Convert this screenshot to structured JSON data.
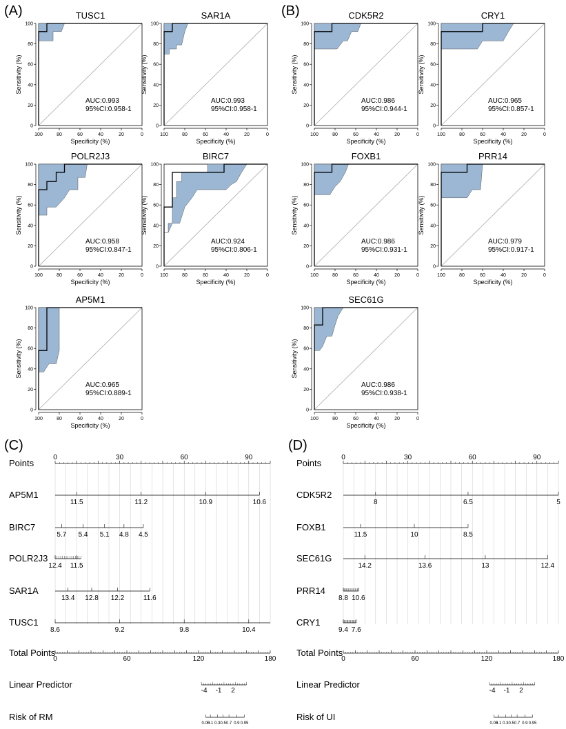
{
  "panels": {
    "A": "(A)",
    "B": "(B)",
    "C": "(C)",
    "D": "(D)"
  },
  "roc_common": {
    "xlabel": "Specificity (%)",
    "ylabel": "Sensitivity (%)",
    "x_ticks": [
      "100",
      "80",
      "60",
      "40",
      "20",
      "0"
    ],
    "y_ticks": [
      "0",
      "20",
      "40",
      "60",
      "80",
      "100"
    ],
    "fill_color": "#9bb7d4",
    "diag_color": "#aaaaaa"
  },
  "chart_data": [
    {
      "type": "line",
      "id": "TUSC1",
      "title": "TUSC1",
      "auc": "AUC:0.993",
      "ci": "95%CI:0.958-1",
      "curve": [
        [
          100,
          0
        ],
        [
          100,
          92
        ],
        [
          92,
          92
        ],
        [
          92,
          100
        ],
        [
          0,
          100
        ]
      ],
      "band_upper": [
        [
          100,
          100
        ],
        [
          0,
          100
        ]
      ],
      "band_lower": [
        [
          100,
          83
        ],
        [
          86,
          83
        ],
        [
          86,
          92
        ],
        [
          78,
          92
        ],
        [
          75,
          100
        ],
        [
          0,
          100
        ]
      ]
    },
    {
      "type": "line",
      "id": "SAR1A",
      "title": "SAR1A",
      "auc": "AUC:0.993",
      "ci": "95%CI:0.958-1",
      "curve": [
        [
          100,
          0
        ],
        [
          100,
          92
        ],
        [
          92,
          92
        ],
        [
          92,
          100
        ],
        [
          0,
          100
        ]
      ],
      "band_upper": [
        [
          100,
          100
        ],
        [
          0,
          100
        ]
      ],
      "band_lower": [
        [
          100,
          70
        ],
        [
          95,
          70
        ],
        [
          95,
          75
        ],
        [
          88,
          75
        ],
        [
          88,
          79
        ],
        [
          83,
          79
        ],
        [
          80,
          92
        ],
        [
          77,
          100
        ],
        [
          0,
          100
        ]
      ]
    },
    {
      "type": "line",
      "id": "CDK5R2",
      "title": "CDK5R2",
      "auc": "AUC:0.986",
      "ci": "95%CI:0.944-1",
      "curve": [
        [
          100,
          0
        ],
        [
          100,
          92
        ],
        [
          83,
          92
        ],
        [
          83,
          100
        ],
        [
          0,
          100
        ]
      ],
      "band_upper": [
        [
          100,
          100
        ],
        [
          0,
          100
        ]
      ],
      "band_lower": [
        [
          100,
          75
        ],
        [
          78,
          75
        ],
        [
          72,
          83
        ],
        [
          68,
          83
        ],
        [
          64,
          92
        ],
        [
          58,
          92
        ],
        [
          55,
          100
        ],
        [
          0,
          100
        ]
      ]
    },
    {
      "type": "line",
      "id": "CRY1",
      "title": "CRY1",
      "auc": "AUC:0.965",
      "ci": "95%CI:0.857-1",
      "curve": [
        [
          100,
          0
        ],
        [
          100,
          92
        ],
        [
          60,
          92
        ],
        [
          60,
          100
        ],
        [
          0,
          100
        ]
      ],
      "band_upper": [
        [
          100,
          100
        ],
        [
          0,
          100
        ]
      ],
      "band_lower": [
        [
          100,
          75
        ],
        [
          65,
          75
        ],
        [
          60,
          83
        ],
        [
          40,
          83
        ],
        [
          35,
          92
        ],
        [
          30,
          100
        ],
        [
          0,
          100
        ]
      ]
    },
    {
      "type": "line",
      "id": "POLR2J3",
      "title": "POLR2J3",
      "auc": "AUC:0.958",
      "ci": "95%CI:0.847-1",
      "curve": [
        [
          100,
          0
        ],
        [
          100,
          75
        ],
        [
          92,
          75
        ],
        [
          92,
          83
        ],
        [
          83,
          83
        ],
        [
          83,
          92
        ],
        [
          75,
          92
        ],
        [
          75,
          100
        ],
        [
          0,
          100
        ]
      ],
      "band_upper": [
        [
          100,
          100
        ],
        [
          0,
          100
        ]
      ],
      "band_lower": [
        [
          100,
          50
        ],
        [
          92,
          50
        ],
        [
          92,
          58
        ],
        [
          83,
          58
        ],
        [
          75,
          67
        ],
        [
          70,
          75
        ],
        [
          62,
          75
        ],
        [
          62,
          87
        ],
        [
          55,
          87
        ],
        [
          53,
          100
        ],
        [
          0,
          100
        ]
      ]
    },
    {
      "type": "line",
      "id": "BIRC7",
      "title": "BIRC7",
      "auc": "AUC:0.924",
      "ci": "95%CI:0.806-1",
      "curve": [
        [
          100,
          0
        ],
        [
          100,
          58
        ],
        [
          92,
          58
        ],
        [
          92,
          92
        ],
        [
          42,
          92
        ],
        [
          42,
          100
        ],
        [
          0,
          100
        ]
      ],
      "band_upper": [
        [
          100,
          33
        ],
        [
          96,
          33
        ],
        [
          96,
          42
        ],
        [
          92,
          42
        ],
        [
          92,
          67
        ],
        [
          88,
          67
        ],
        [
          88,
          83
        ],
        [
          83,
          83
        ],
        [
          83,
          92
        ],
        [
          58,
          92
        ],
        [
          58,
          100
        ],
        [
          0,
          100
        ]
      ],
      "band_lower": [
        [
          100,
          33
        ],
        [
          96,
          33
        ],
        [
          92,
          42
        ],
        [
          85,
          42
        ],
        [
          80,
          58
        ],
        [
          73,
          67
        ],
        [
          68,
          75
        ],
        [
          40,
          75
        ],
        [
          35,
          80
        ],
        [
          30,
          83
        ],
        [
          25,
          92
        ],
        [
          20,
          100
        ],
        [
          0,
          100
        ]
      ]
    },
    {
      "type": "line",
      "id": "FOXB1",
      "title": "FOXB1",
      "auc": "AUC:0.986",
      "ci": "95%CI:0.931-1",
      "curve": [
        [
          100,
          0
        ],
        [
          100,
          92
        ],
        [
          83,
          92
        ],
        [
          83,
          100
        ],
        [
          0,
          100
        ]
      ],
      "band_upper": [
        [
          100,
          100
        ],
        [
          0,
          100
        ]
      ],
      "band_lower": [
        [
          100,
          70
        ],
        [
          85,
          70
        ],
        [
          80,
          78
        ],
        [
          75,
          83
        ],
        [
          70,
          92
        ],
        [
          67,
          100
        ],
        [
          0,
          100
        ]
      ]
    },
    {
      "type": "line",
      "id": "PRR14",
      "title": "PRR14",
      "auc": "AUC:0.979",
      "ci": "95%CI:0.917-1",
      "curve": [
        [
          100,
          0
        ],
        [
          100,
          92
        ],
        [
          75,
          92
        ],
        [
          75,
          100
        ],
        [
          0,
          100
        ]
      ],
      "band_upper": [
        [
          100,
          100
        ],
        [
          0,
          100
        ]
      ],
      "band_lower": [
        [
          100,
          67
        ],
        [
          75,
          67
        ],
        [
          70,
          75
        ],
        [
          62,
          75
        ],
        [
          60,
          100
        ],
        [
          0,
          100
        ]
      ]
    },
    {
      "type": "line",
      "id": "AP5M1",
      "title": "AP5M1",
      "auc": "AUC:0.965",
      "ci": "95%CI:0.889-1",
      "curve": [
        [
          100,
          0
        ],
        [
          100,
          58
        ],
        [
          92,
          58
        ],
        [
          92,
          100
        ],
        [
          0,
          100
        ]
      ],
      "band_upper": [
        [
          100,
          100
        ],
        [
          0,
          100
        ]
      ],
      "band_lower": [
        [
          100,
          37
        ],
        [
          95,
          37
        ],
        [
          90,
          45
        ],
        [
          83,
          45
        ],
        [
          80,
          58
        ],
        [
          80,
          100
        ],
        [
          0,
          100
        ]
      ]
    },
    {
      "type": "line",
      "id": "SEC61G",
      "title": "SEC61G",
      "auc": "AUC:0.986",
      "ci": "95%CI:0.938-1",
      "curve": [
        [
          100,
          0
        ],
        [
          100,
          83
        ],
        [
          92,
          83
        ],
        [
          92,
          100
        ],
        [
          0,
          100
        ]
      ],
      "band_upper": [
        [
          100,
          100
        ],
        [
          0,
          100
        ]
      ],
      "band_lower": [
        [
          100,
          58
        ],
        [
          95,
          58
        ],
        [
          92,
          62
        ],
        [
          88,
          72
        ],
        [
          83,
          72
        ],
        [
          80,
          83
        ],
        [
          77,
          92
        ],
        [
          72,
          100
        ],
        [
          0,
          100
        ]
      ]
    },
    {
      "type": "nomogram",
      "id": "C",
      "rows": [
        {
          "label": "Points",
          "min": 0,
          "max": 100,
          "major_labels": [
            [
              "0",
              0
            ],
            [
              "30",
              30
            ],
            [
              "60",
              60
            ],
            [
              "90",
              90
            ]
          ],
          "minor_step": 10,
          "label_side": "top",
          "grid": true
        },
        {
          "label": "AP5M1",
          "min": 0,
          "max": 95,
          "labels": [
            [
              "11.5",
              10
            ],
            [
              "11.2",
              40
            ],
            [
              "10.9",
              70
            ],
            [
              "10.6",
              95
            ]
          ]
        },
        {
          "label": "BIRC7",
          "min": 0,
          "max": 41,
          "labels": [
            [
              "5.7",
              3
            ],
            [
              "5.4",
              13
            ],
            [
              "5.1",
              23
            ],
            [
              "4.8",
              32
            ],
            [
              "4.5",
              41
            ]
          ]
        },
        {
          "label": "POLR2J3",
          "min": 0,
          "max": 12,
          "labels": [
            [
              "12.4",
              0
            ],
            [
              "11.5",
              10
            ]
          ],
          "fine": true
        },
        {
          "label": "SAR1A",
          "min": 0,
          "max": 44,
          "labels": [
            [
              "13.4",
              6
            ],
            [
              "12.8",
              17
            ],
            [
              "12.2",
              29
            ],
            [
              "11.6",
              44
            ]
          ]
        },
        {
          "label": "TUSC1",
          "min": 0,
          "max": 100,
          "labels": [
            [
              "8.6",
              0
            ],
            [
              "9.2",
              30
            ],
            [
              "9.8",
              60
            ],
            [
              "10.4",
              90
            ]
          ]
        },
        {
          "label": "Total Points",
          "min": 0,
          "max": 180,
          "labels": [
            [
              "0",
              0
            ],
            [
              "60",
              60
            ],
            [
              "120",
              120
            ],
            [
              "180",
              180
            ]
          ],
          "label_side": "top",
          "fine": true
        }
      ],
      "linear_predictor": {
        "label": "Linear Predictor",
        "labels": [
          "-4",
          "-1",
          "2"
        ]
      },
      "risk": {
        "label": "Risk of RM",
        "labels": [
          "0.05",
          "0.1",
          "0.3",
          "0.5",
          "0.7",
          "0.9",
          "0.95"
        ]
      }
    },
    {
      "type": "nomogram",
      "id": "D",
      "rows": [
        {
          "label": "Points",
          "min": 0,
          "max": 100,
          "major_labels": [
            [
              "0",
              0
            ],
            [
              "30",
              30
            ],
            [
              "60",
              60
            ],
            [
              "90",
              90
            ]
          ],
          "minor_step": 10,
          "label_side": "top",
          "grid": true
        },
        {
          "label": "CDK5R2",
          "min": 0,
          "max": 100,
          "labels": [
            [
              "8",
              15
            ],
            [
              "6.5",
              58
            ],
            [
              "5",
              100
            ]
          ]
        },
        {
          "label": "FOXB1",
          "min": 0,
          "max": 58,
          "labels": [
            [
              "11.5",
              8
            ],
            [
              "10",
              33
            ],
            [
              "8.5",
              58
            ]
          ]
        },
        {
          "label": "SEC61G",
          "min": 0,
          "max": 95,
          "labels": [
            [
              "14.2",
              10
            ],
            [
              "13.6",
              38
            ],
            [
              "13",
              66
            ],
            [
              "12.4",
              95
            ]
          ]
        },
        {
          "label": "PRR14",
          "min": 0,
          "max": 7,
          "labels": [
            [
              "8.8",
              0
            ],
            [
              "10.6",
              7
            ]
          ],
          "fine": true
        },
        {
          "label": "CRY1",
          "min": 0,
          "max": 6,
          "labels": [
            [
              "9.4",
              0
            ],
            [
              "7.6",
              6
            ]
          ],
          "fine": true
        },
        {
          "label": "Total Points",
          "min": 0,
          "max": 180,
          "labels": [
            [
              "0",
              0
            ],
            [
              "60",
              60
            ],
            [
              "120",
              120
            ],
            [
              "180",
              180
            ]
          ],
          "label_side": "top",
          "fine": true
        }
      ],
      "linear_predictor": {
        "label": "Linear Predictor",
        "labels": [
          "-4",
          "-1",
          "2"
        ]
      },
      "risk": {
        "label": "Risk of UI",
        "labels": [
          "0.05",
          "0.1",
          "0.3",
          "0.5",
          "0.7",
          "0.9",
          "0.95"
        ]
      }
    }
  ]
}
